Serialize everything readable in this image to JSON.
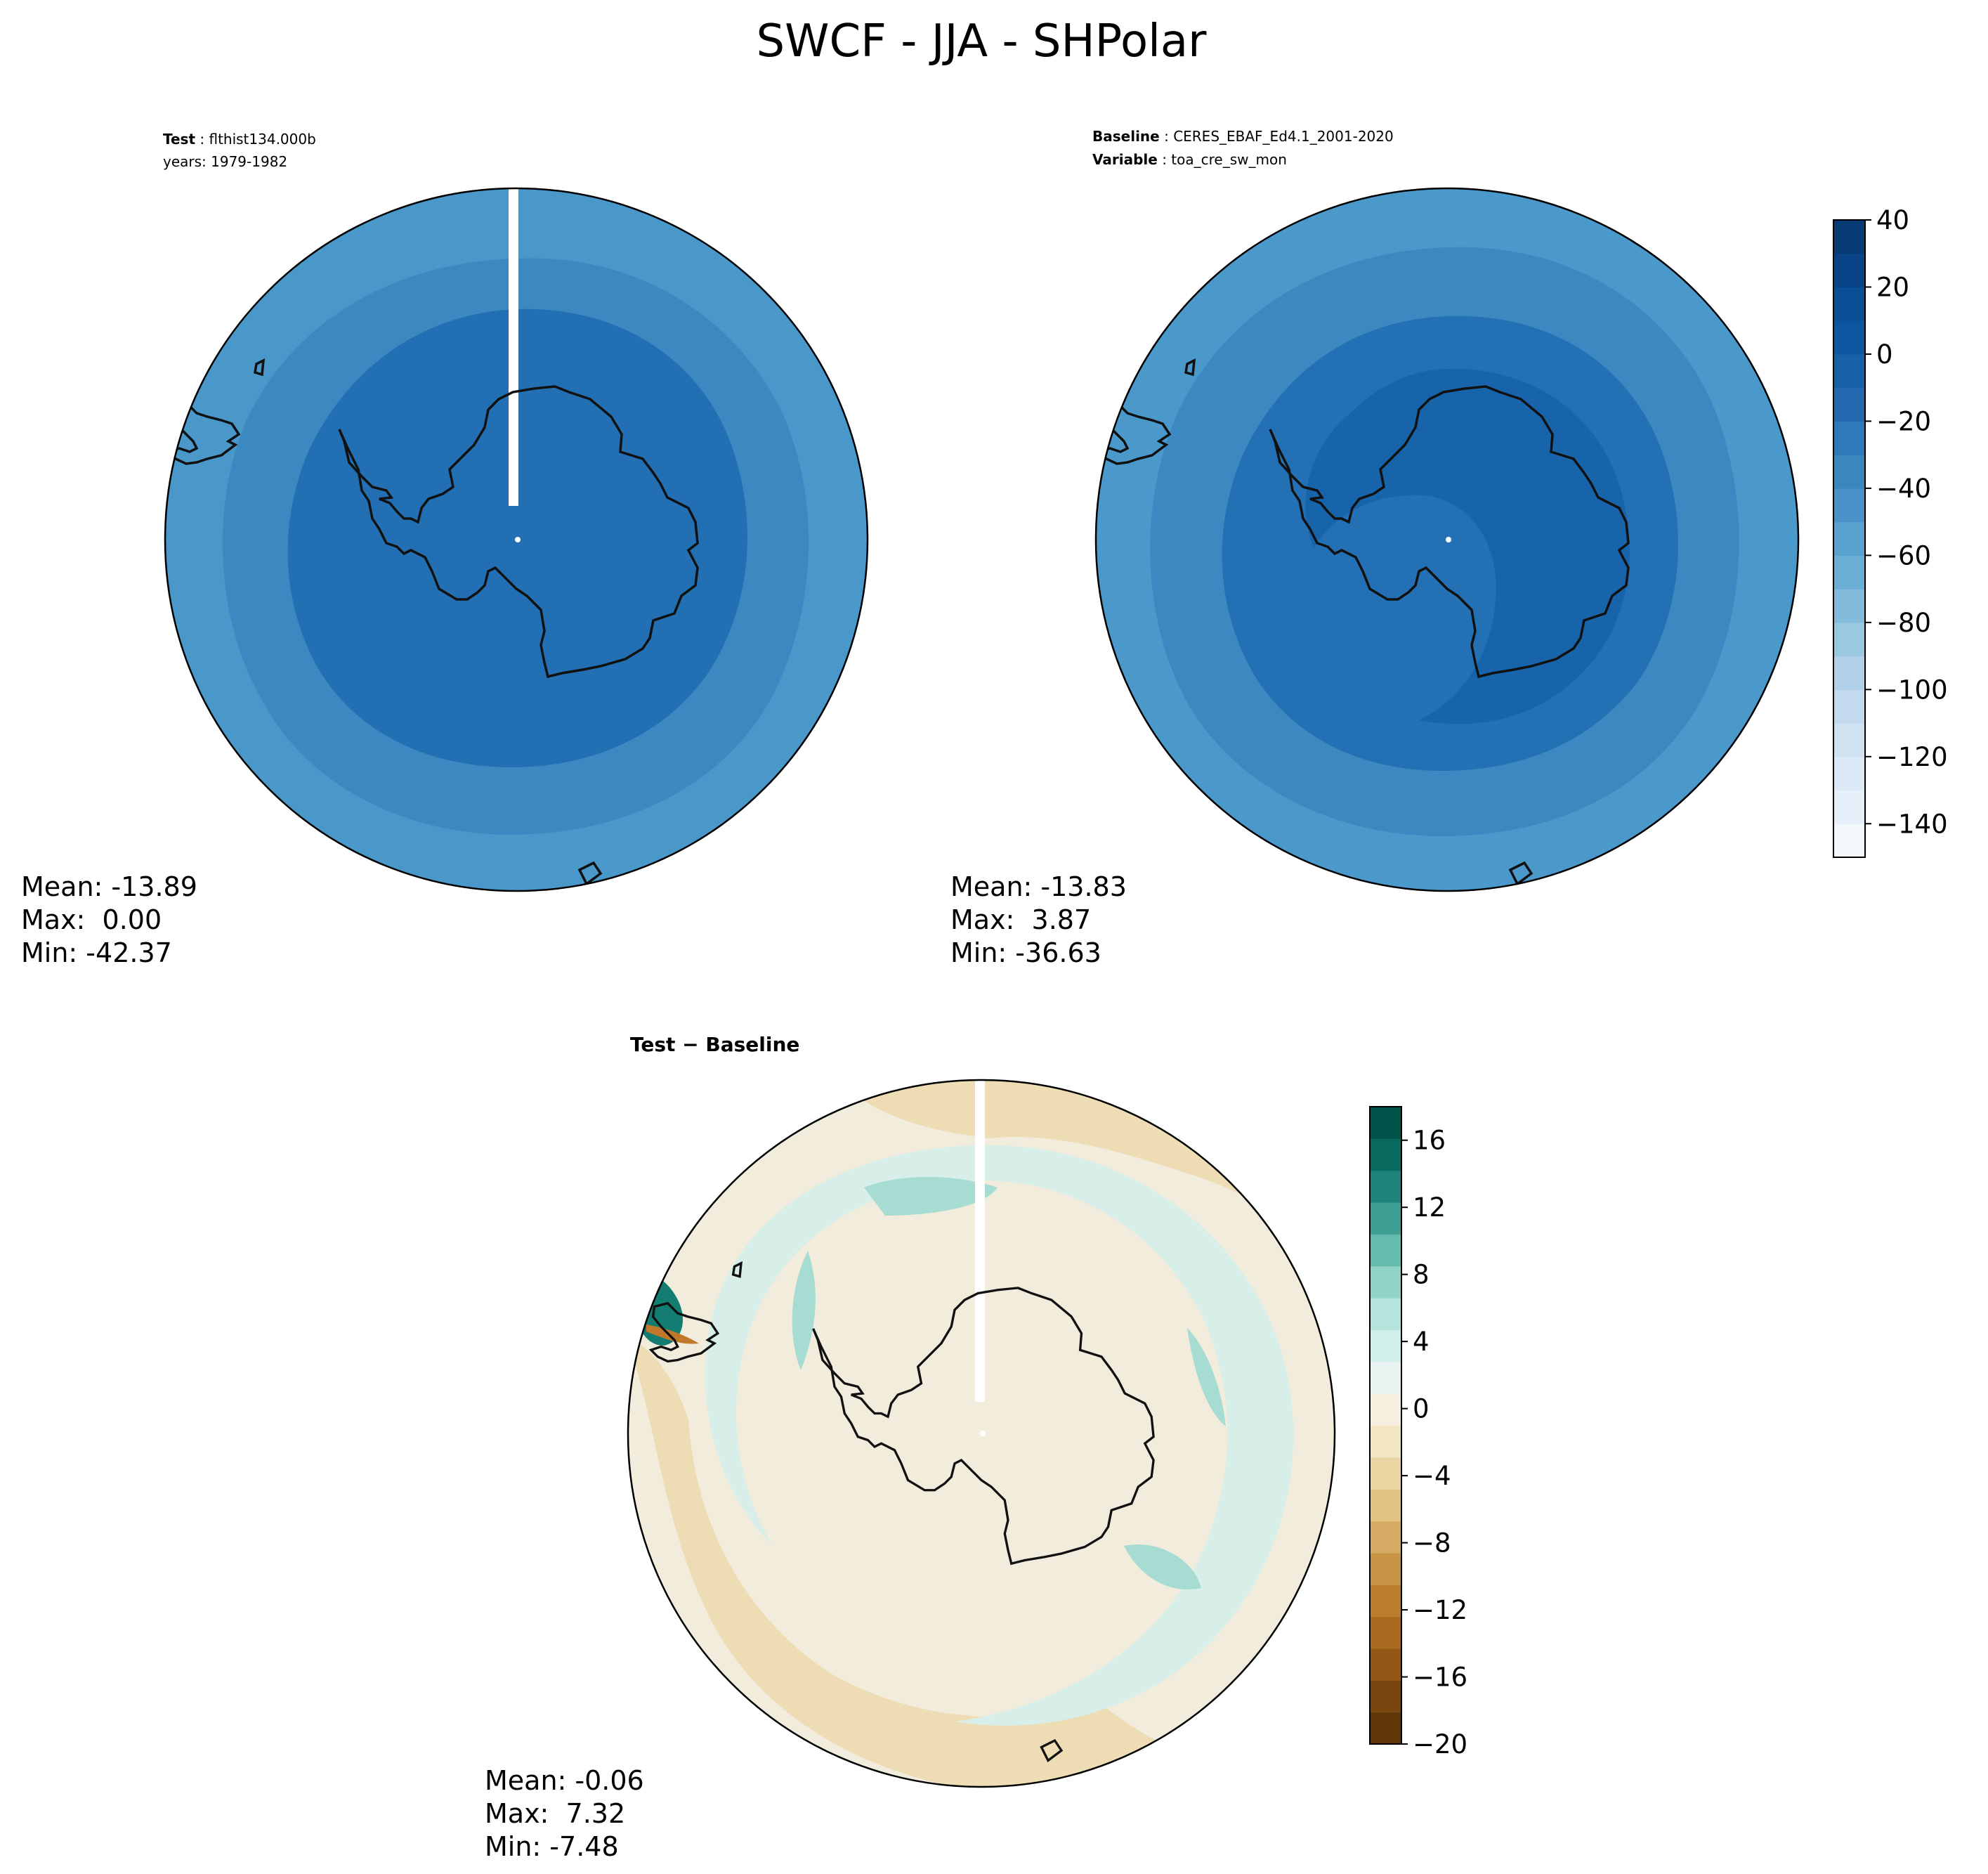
{
  "title": "SWCF - JJA - SHPolar",
  "panels": {
    "test": {
      "label_key": "Test",
      "label_value": "flthist134.000b",
      "years_line": "years: 1979-1982",
      "stats": {
        "mean": "Mean: -13.89",
        "max": "Max:  0.00",
        "min": "Min: -42.37"
      }
    },
    "baseline": {
      "label_key": "Baseline",
      "label_value": "CERES_EBAF_Ed4.1_2001-2020",
      "variable_key": "Variable",
      "variable_value": "toa_cre_sw_mon",
      "stats": {
        "mean": "Mean: -13.83",
        "max": "Max:  3.87",
        "min": "Min: -36.63"
      }
    },
    "diff": {
      "label": "Test − Baseline",
      "stats": {
        "mean": "Mean: -0.06",
        "max": "Max:  7.32",
        "min": "Min: -7.48"
      }
    }
  },
  "colorbars": {
    "blues": {
      "ticks": [
        "40",
        "20",
        "0",
        "−20",
        "−40",
        "−60",
        "−80",
        "−100",
        "−120",
        "−140"
      ],
      "range": [
        -150,
        40
      ],
      "colors": [
        "#f3f8fd",
        "#e6f0fa",
        "#dce9f6",
        "#d0e2f2",
        "#c2d9ee",
        "#b0d1e9",
        "#9ac8e0",
        "#84bbdb",
        "#6baed6",
        "#5aa1cf",
        "#4a93c8",
        "#3c86c0",
        "#2f78b9",
        "#2369af",
        "#1761a9",
        "#0f56a0",
        "#0a4e95",
        "#084487",
        "#083a75"
      ]
    },
    "brbg": {
      "ticks": [
        "16",
        "12",
        "8",
        "4",
        "0",
        "−4",
        "−8",
        "−12",
        "−16",
        "−20"
      ],
      "range": [
        -20,
        18
      ],
      "colors": [
        "#5e3608",
        "#7a4610",
        "#935816",
        "#a8691f",
        "#ba7c2d",
        "#c99445",
        "#d6ab64",
        "#e1c484",
        "#ebd6a3",
        "#f3e6c4",
        "#f6efdf",
        "#e9f2f1",
        "#d2eeea",
        "#b5e4dc",
        "#8fd4c7",
        "#64bcae",
        "#3e9f92",
        "#1f8379",
        "#096a60",
        "#00544a"
      ]
    }
  },
  "map_colors": {
    "test": {
      "outer": "#4a97ca",
      "middle": "#3c89c1",
      "inner": "#2270b3",
      "land_edge": "#111111"
    },
    "baseline": {
      "outer": "#4b98ca",
      "middle": "#3b89c0",
      "inner": "#2370b4",
      "core": "#1864ab"
    },
    "diff": {
      "base": "#f2ecdc",
      "teal_light": "#d8eee9",
      "teal": "#a6dcd2",
      "tan": "#eedcb4",
      "dark_teal": "#137d72"
    }
  }
}
